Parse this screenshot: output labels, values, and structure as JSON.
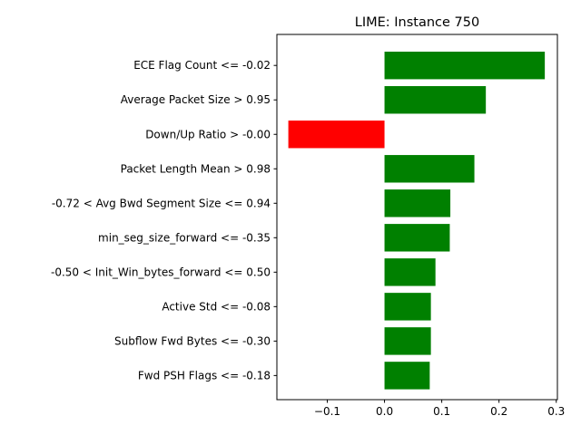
{
  "chart_data": {
    "type": "bar",
    "orientation": "horizontal",
    "title": "LIME: Instance 750",
    "xlabel": "",
    "ylabel": "",
    "grid": false,
    "xlim": [
      -0.188,
      0.302
    ],
    "xticks": [
      -0.1,
      0.0,
      0.1,
      0.2,
      0.3
    ],
    "xtick_labels": [
      "−0.1",
      "0.0",
      "0.1",
      "0.2",
      "0.3"
    ],
    "positive_color": "#008000",
    "negative_color": "#ff0000",
    "categories": [
      "ECE Flag Count <= -0.02",
      "Average Packet Size > 0.95",
      "Down/Up Ratio > -0.00",
      "Packet Length Mean > 0.98",
      "-0.72 < Avg Bwd Segment Size <= 0.94",
      "min_seg_size_forward <= -0.35",
      "-0.50 < Init_Win_bytes_forward <= 0.50",
      "Active Std <= -0.08",
      "Subflow Fwd Bytes <= -0.30",
      "Fwd PSH Flags <= -0.18"
    ],
    "values": [
      0.28,
      0.177,
      -0.168,
      0.157,
      0.115,
      0.114,
      0.089,
      0.081,
      0.081,
      0.079
    ]
  }
}
